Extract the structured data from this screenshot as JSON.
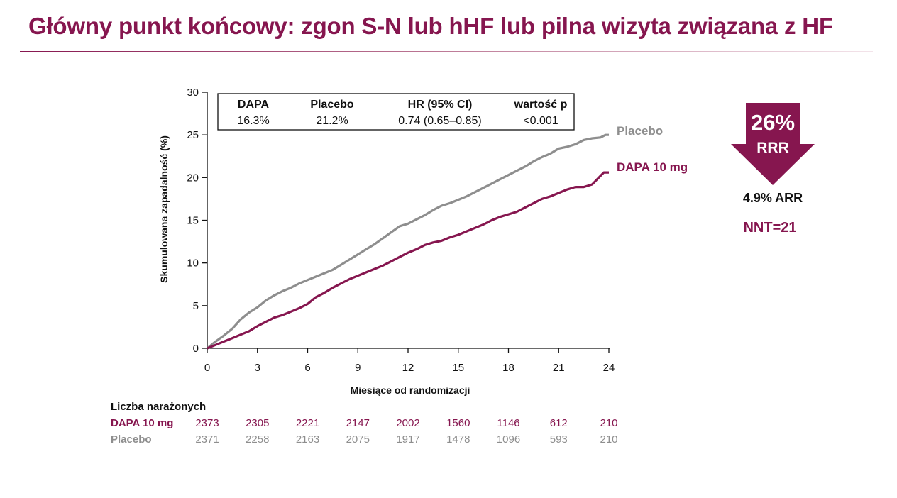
{
  "title": "Główny punkt końcowy: zgon S-N lub hHF lub pilna wizyta związana z HF",
  "colors": {
    "brand": "#86164f",
    "placebo": "#8e8e8e",
    "text": "#111111"
  },
  "stats_table": {
    "headers": [
      "DAPA",
      "Placebo",
      "HR (95% CI)",
      "wartość p"
    ],
    "values": [
      "16.3%",
      "21.2%",
      "0.74 (0.65–0.85)",
      "<0.001"
    ]
  },
  "summary": {
    "rrr_value": "26%",
    "rrr_label": "RRR",
    "arr": "4.9% ARR",
    "nnt": "NNT=21",
    "arrow_icon": "down-arrow-icon"
  },
  "at_risk": {
    "title": "Liczba narażonych",
    "rows": [
      {
        "label": "DAPA 10 mg",
        "values": [
          "2373",
          "2305",
          "2221",
          "2147",
          "2002",
          "1560",
          "1146",
          "612",
          "210"
        ]
      },
      {
        "label": "Placebo",
        "values": [
          "2371",
          "2258",
          "2163",
          "2075",
          "1917",
          "1478",
          "1096",
          "593",
          "210"
        ]
      }
    ]
  },
  "chart_data": {
    "type": "line",
    "title": "",
    "xlabel": "Miesiące od randomizacji",
    "ylabel": "Skumulowana zapadalność (%)",
    "xlim": [
      0,
      24
    ],
    "ylim": [
      0,
      30
    ],
    "xticks": [
      "0",
      "3",
      "6",
      "9",
      "12",
      "15",
      "18",
      "21",
      "24"
    ],
    "yticks": [
      "0",
      "5",
      "10",
      "15",
      "20",
      "25",
      "30"
    ],
    "grid": false,
    "legend": "end-of-line labels",
    "series": [
      {
        "name": "Placebo",
        "color": "#8e8e8e",
        "points": [
          [
            0,
            0
          ],
          [
            0.5,
            0.8
          ],
          [
            1,
            1.5
          ],
          [
            1.5,
            2.3
          ],
          [
            2,
            3.4
          ],
          [
            2.5,
            4.2
          ],
          [
            3,
            4.8
          ],
          [
            3.5,
            5.6
          ],
          [
            4,
            6.2
          ],
          [
            4.5,
            6.7
          ],
          [
            5,
            7.1
          ],
          [
            5.5,
            7.6
          ],
          [
            6,
            8.0
          ],
          [
            6.5,
            8.4
          ],
          [
            7,
            8.8
          ],
          [
            7.5,
            9.2
          ],
          [
            8,
            9.8
          ],
          [
            8.5,
            10.4
          ],
          [
            9,
            11.0
          ],
          [
            9.5,
            11.6
          ],
          [
            10,
            12.2
          ],
          [
            10.5,
            12.9
          ],
          [
            11,
            13.6
          ],
          [
            11.5,
            14.3
          ],
          [
            12,
            14.6
          ],
          [
            12.5,
            15.1
          ],
          [
            13,
            15.6
          ],
          [
            13.5,
            16.2
          ],
          [
            14,
            16.7
          ],
          [
            14.5,
            17.0
          ],
          [
            15,
            17.4
          ],
          [
            15.5,
            17.8
          ],
          [
            16,
            18.3
          ],
          [
            16.5,
            18.8
          ],
          [
            17,
            19.3
          ],
          [
            17.5,
            19.8
          ],
          [
            18,
            20.3
          ],
          [
            18.5,
            20.8
          ],
          [
            19,
            21.3
          ],
          [
            19.5,
            21.9
          ],
          [
            20,
            22.4
          ],
          [
            20.5,
            22.8
          ],
          [
            21,
            23.4
          ],
          [
            21.5,
            23.6
          ],
          [
            22,
            23.9
          ],
          [
            22.5,
            24.4
          ],
          [
            23,
            24.6
          ],
          [
            23.5,
            24.7
          ],
          [
            23.8,
            25.0
          ],
          [
            24,
            25.0
          ]
        ]
      },
      {
        "name": "DAPA 10 mg",
        "color": "#86164f",
        "points": [
          [
            0,
            0
          ],
          [
            0.5,
            0.4
          ],
          [
            1,
            0.8
          ],
          [
            1.5,
            1.2
          ],
          [
            2,
            1.6
          ],
          [
            2.5,
            2.0
          ],
          [
            3,
            2.6
          ],
          [
            3.5,
            3.1
          ],
          [
            4,
            3.6
          ],
          [
            4.5,
            3.9
          ],
          [
            5,
            4.3
          ],
          [
            5.5,
            4.7
          ],
          [
            6,
            5.2
          ],
          [
            6.5,
            6.0
          ],
          [
            7,
            6.5
          ],
          [
            7.5,
            7.1
          ],
          [
            8,
            7.6
          ],
          [
            8.5,
            8.1
          ],
          [
            9,
            8.5
          ],
          [
            9.5,
            8.9
          ],
          [
            10,
            9.3
          ],
          [
            10.5,
            9.7
          ],
          [
            11,
            10.2
          ],
          [
            11.5,
            10.7
          ],
          [
            12,
            11.2
          ],
          [
            12.5,
            11.6
          ],
          [
            13,
            12.1
          ],
          [
            13.5,
            12.4
          ],
          [
            14,
            12.6
          ],
          [
            14.5,
            13.0
          ],
          [
            15,
            13.3
          ],
          [
            15.5,
            13.7
          ],
          [
            16,
            14.1
          ],
          [
            16.5,
            14.5
          ],
          [
            17,
            15.0
          ],
          [
            17.5,
            15.4
          ],
          [
            18,
            15.7
          ],
          [
            18.5,
            16.0
          ],
          [
            19,
            16.5
          ],
          [
            19.5,
            17.0
          ],
          [
            20,
            17.5
          ],
          [
            20.5,
            17.8
          ],
          [
            21,
            18.2
          ],
          [
            21.5,
            18.6
          ],
          [
            22,
            18.9
          ],
          [
            22.5,
            18.9
          ],
          [
            23,
            19.2
          ],
          [
            23.3,
            19.8
          ],
          [
            23.5,
            20.2
          ],
          [
            23.7,
            20.6
          ],
          [
            24,
            20.6
          ]
        ]
      }
    ]
  }
}
